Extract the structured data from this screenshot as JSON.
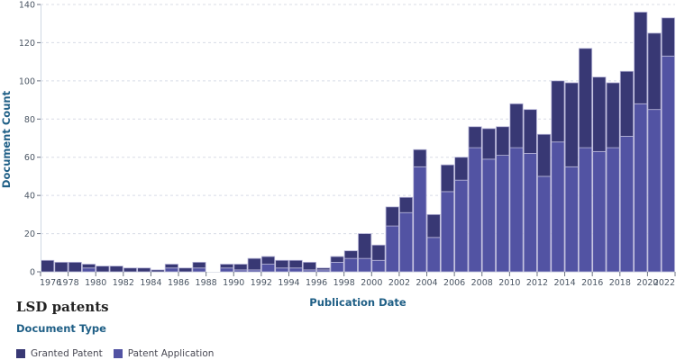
{
  "colors": {
    "granted": "#383874",
    "application": "#5253a3",
    "bar_stroke": "#b6b4d8",
    "grid": "#d8dce6",
    "axis": "#cfd8e3",
    "tick": "#6b7280"
  },
  "chart": {
    "title": "LSD patents",
    "xlabel": "Publication Date",
    "ylabel": "Document Count",
    "legend_title": "Document Type"
  },
  "legend": {
    "items": [
      {
        "label": "Granted Patent",
        "color": "#383874"
      },
      {
        "label": "Patent Application",
        "color": "#5253a3"
      }
    ]
  },
  "chart_data": {
    "type": "bar",
    "stacked": true,
    "title": "LSD patents",
    "xlabel": "Publication Date",
    "ylabel": "Document Count",
    "ylim": [
      0,
      140
    ],
    "yticks": [
      0,
      20,
      40,
      60,
      80,
      100,
      120,
      140
    ],
    "xticks": [
      1976,
      1978,
      1980,
      1982,
      1984,
      1986,
      1988,
      1990,
      1992,
      1994,
      1996,
      1998,
      2000,
      2002,
      2004,
      2006,
      2008,
      2010,
      2012,
      2014,
      2016,
      2018,
      2020,
      2022
    ],
    "grid": true,
    "legend_position": "bottom-left",
    "legend_title": "Document Type",
    "categories": [
      1976,
      1977,
      1978,
      1979,
      1980,
      1981,
      1982,
      1983,
      1984,
      1985,
      1986,
      1987,
      1988,
      1989,
      1990,
      1991,
      1992,
      1993,
      1994,
      1995,
      1996,
      1997,
      1998,
      1999,
      2000,
      2001,
      2002,
      2003,
      2004,
      2005,
      2006,
      2007,
      2008,
      2009,
      2010,
      2011,
      2012,
      2013,
      2014,
      2015,
      2016,
      2017,
      2018,
      2019,
      2020,
      2021
    ],
    "series": [
      {
        "name": "Patent Application",
        "values": [
          0,
          0,
          0,
          2,
          0,
          0,
          0,
          0,
          0,
          2,
          0,
          2,
          0,
          2,
          1,
          1,
          4,
          2,
          2,
          1,
          1,
          5,
          7,
          7,
          6,
          24,
          31,
          55,
          18,
          42,
          48,
          65,
          59,
          61,
          65,
          62,
          50,
          68,
          55,
          65,
          63,
          65,
          71,
          88,
          85,
          113
        ]
      },
      {
        "name": "Granted Patent",
        "values": [
          6,
          5,
          5,
          2,
          3,
          3,
          2,
          2,
          1,
          2,
          2,
          3,
          0,
          2,
          3,
          6,
          4,
          4,
          4,
          4,
          1,
          3,
          4,
          13,
          8,
          10,
          8,
          9,
          12,
          14,
          12,
          11,
          16,
          15,
          23,
          23,
          22,
          32,
          44,
          52,
          39,
          34,
          34,
          48,
          40,
          20
        ]
      }
    ],
    "totals": [
      6,
      5,
      5,
      4,
      3,
      3,
      2,
      2,
      1,
      4,
      2,
      5,
      0,
      4,
      4,
      7,
      8,
      6,
      6,
      5,
      2,
      8,
      11,
      20,
      14,
      34,
      39,
      64,
      30,
      56,
      60,
      76,
      75,
      76,
      88,
      85,
      72,
      100,
      99,
      117,
      102,
      99,
      105,
      136,
      125,
      133
    ]
  }
}
